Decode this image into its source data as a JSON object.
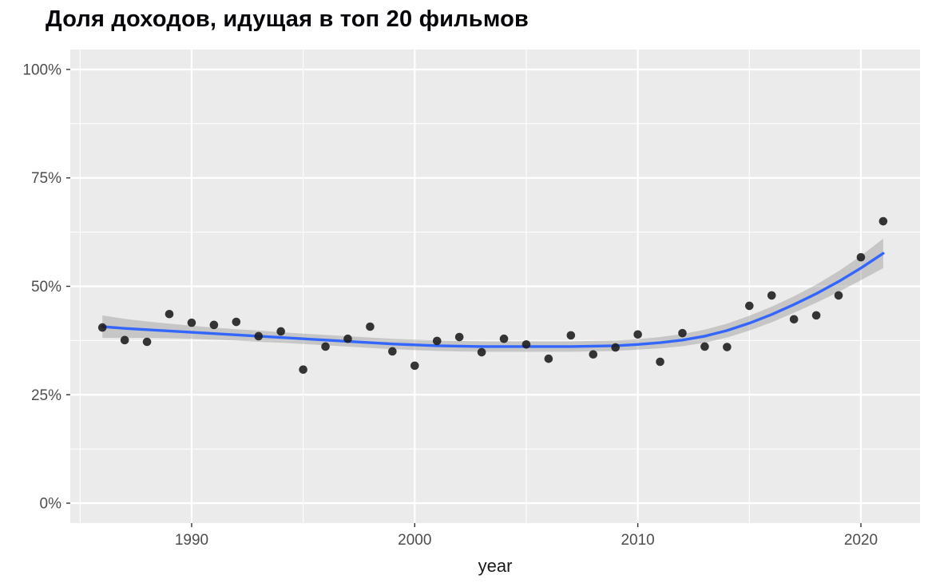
{
  "chart_data": {
    "type": "scatter",
    "title": "Доля доходов, идущая в топ 20 фильмов",
    "xlabel": "year",
    "ylabel": "",
    "legend": "none",
    "grid": true,
    "x": [
      1986,
      1987,
      1988,
      1989,
      1990,
      1991,
      1992,
      1993,
      1994,
      1995,
      1996,
      1997,
      1998,
      1999,
      2000,
      2001,
      2002,
      2003,
      2004,
      2005,
      2006,
      2007,
      2008,
      2009,
      2010,
      2011,
      2012,
      2013,
      2014,
      2015,
      2016,
      2017,
      2018,
      2019,
      2020,
      2021
    ],
    "points_pct": [
      40.5,
      37.6,
      37.2,
      43.6,
      41.6,
      41.1,
      41.8,
      38.5,
      39.6,
      30.8,
      36.1,
      37.9,
      40.7,
      35.0,
      31.7,
      37.4,
      38.3,
      34.8,
      37.9,
      36.6,
      33.3,
      38.7,
      34.3,
      35.9,
      38.9,
      32.6,
      39.2,
      36.1,
      36.0,
      45.5,
      47.9,
      42.4,
      43.3,
      47.9,
      56.7,
      65.0
    ],
    "smooth_line_pct": [
      40.7,
      40.3,
      40.0,
      39.7,
      39.4,
      39.1,
      38.8,
      38.5,
      38.2,
      37.9,
      37.6,
      37.3,
      37.0,
      36.7,
      36.5,
      36.3,
      36.2,
      36.1,
      36.1,
      36.1,
      36.1,
      36.1,
      36.2,
      36.3,
      36.6,
      37.0,
      37.6,
      38.5,
      39.8,
      41.5,
      43.5,
      45.8,
      48.3,
      51.1,
      54.2,
      57.6
    ],
    "ci_halfwidth_pct": [
      2.6,
      2.2,
      1.9,
      1.7,
      1.5,
      1.4,
      1.3,
      1.3,
      1.2,
      1.2,
      1.2,
      1.2,
      1.2,
      1.2,
      1.2,
      1.2,
      1.2,
      1.2,
      1.2,
      1.2,
      1.2,
      1.2,
      1.2,
      1.2,
      1.2,
      1.3,
      1.4,
      1.5,
      1.6,
      1.7,
      1.8,
      1.9,
      2.1,
      2.4,
      2.8,
      3.4
    ],
    "x_tick_values": [
      1990,
      2000,
      2010,
      2020
    ],
    "x_tick_labels": [
      "1990",
      "2000",
      "2010",
      "2020"
    ],
    "x_minor_ticks": [
      1985,
      1995,
      2005,
      2015
    ],
    "y_tick_values": [
      0,
      25,
      50,
      75,
      100
    ],
    "y_tick_labels": [
      "0%",
      "25%",
      "50%",
      "75%",
      "100%"
    ],
    "y_minor_ticks": [
      12.5,
      37.5,
      62.5,
      87.5
    ],
    "xlim": [
      1984.56,
      2022.65
    ],
    "ylim": [
      -4.6,
      104.6
    ],
    "colors": {
      "panel_bg": "#ebebeb",
      "grid": "#ffffff",
      "point": "#1a1a1a",
      "smooth_line": "#3366ff",
      "ribbon": "#999999",
      "tick_label": "#4d4d4d",
      "axis_title": "#1a1a1a",
      "tick_mark": "#333333"
    }
  }
}
